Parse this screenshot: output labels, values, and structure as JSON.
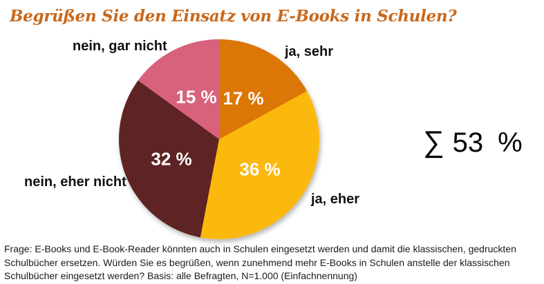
{
  "title": "Begrüßen Sie den Einsatz von E-Books in Schulen?",
  "chart_data": {
    "type": "pie",
    "title": "Begrüßen Sie den Einsatz von E-Books in Schulen?",
    "categories": [
      "ja, sehr",
      "ja, eher",
      "nein, eher nicht",
      "nein, gar nicht"
    ],
    "values": [
      17,
      36,
      32,
      15
    ],
    "value_labels": [
      "17 %",
      "36 %",
      "32 %",
      "15 %"
    ],
    "colors": [
      "#dc7607",
      "#fcb90d",
      "#5e2423",
      "#d8617c"
    ],
    "start_angle_deg": 0,
    "direction": "clockwise",
    "legend_position": "labels-around-pie",
    "sum_annotation": {
      "sigma": "∑",
      "value": "53",
      "unit": "%"
    }
  },
  "footer": {
    "lines": [
      "Frage: E-Books und E-Book-Reader könnten auch in Schulen eingesetzt werden und damit die klassischen, gedruckten",
      "Schulbücher ersetzen. Würden Sie es begrüßen, wenn zunehmend mehr E-Books in Schulen anstelle der klassischen",
      "Schulbücher eingesetzt werden? Basis: alle Befragten, N=1.000 (Einfachnennung)"
    ]
  }
}
